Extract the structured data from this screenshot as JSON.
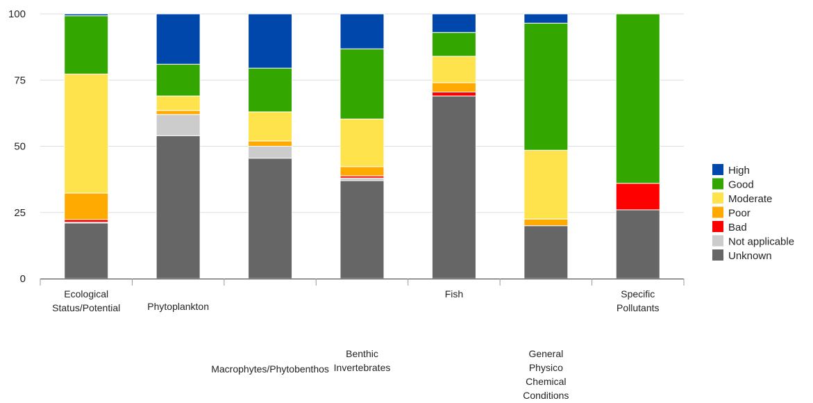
{
  "chart_data": {
    "type": "bar",
    "stacked": true,
    "categories": [
      [
        "Ecological",
        "Status/Potential"
      ],
      [
        "Phytoplankton"
      ],
      [
        "Macrophytes/Phytobenthos"
      ],
      [
        "Benthic",
        "Invertebrates"
      ],
      [
        "Fish"
      ],
      [
        "General",
        "Physico",
        "Chemical",
        "Conditions"
      ],
      [
        "Specific",
        "Pollutants"
      ]
    ],
    "series": [
      {
        "name": "Unknown",
        "color": "#666666",
        "values": [
          21,
          54,
          45.5,
          37,
          69,
          20,
          26
        ]
      },
      {
        "name": "Not applicable",
        "color": "#cccccc",
        "values": [
          0.3,
          8,
          4.5,
          1,
          0,
          0,
          0
        ]
      },
      {
        "name": "Bad",
        "color": "#ff0000",
        "values": [
          1,
          0,
          0,
          0.8,
          1.5,
          0,
          10
        ]
      },
      {
        "name": "Poor",
        "color": "#ffaa00",
        "values": [
          10,
          1.5,
          2,
          3.5,
          3.5,
          2.5,
          0
        ]
      },
      {
        "name": "Moderate",
        "color": "#ffe34d",
        "values": [
          45,
          5.5,
          11,
          18,
          10,
          26,
          0
        ]
      },
      {
        "name": "Good",
        "color": "#33a600",
        "values": [
          22,
          12,
          16.5,
          26.5,
          9,
          48,
          64
        ]
      },
      {
        "name": "High",
        "color": "#0047ab",
        "values": [
          0.7,
          19,
          20.5,
          13.2,
          7,
          3.5,
          0
        ]
      }
    ],
    "y_ticks": [
      0,
      25,
      50,
      75,
      100
    ],
    "ylim": [
      0,
      100
    ],
    "title": "",
    "xlabel": "",
    "ylabel": "",
    "grid": true,
    "legend_position": "right",
    "legend_order": [
      "High",
      "Good",
      "Moderate",
      "Poor",
      "Bad",
      "Not applicable",
      "Unknown"
    ]
  }
}
